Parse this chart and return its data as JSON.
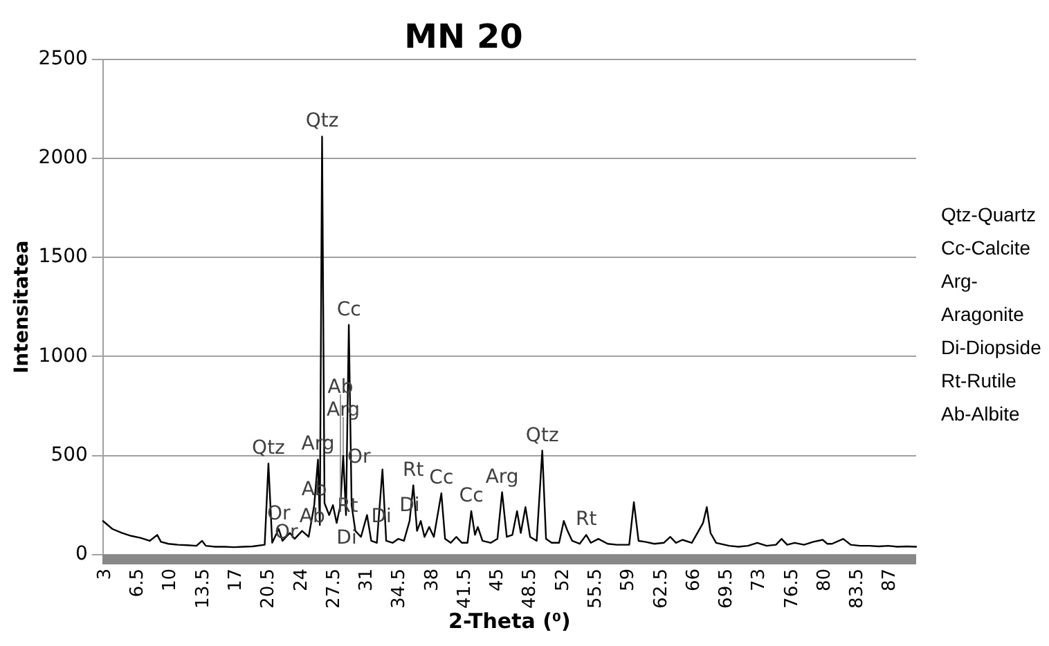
{
  "chart_data": {
    "type": "line",
    "title": "MN 20",
    "xlabel": "2-Theta (⁰)",
    "ylabel": "Intensitatea",
    "x": [
      3,
      3.5,
      4,
      5,
      6,
      7,
      8,
      8.8,
      9.2,
      10,
      11,
      12,
      13,
      13.6,
      14,
      15,
      16,
      17,
      18,
      19,
      20.3,
      20.7,
      21.1,
      21.8,
      22.2,
      23.0,
      23.5,
      24.3,
      25,
      25.6,
      26.0,
      26.2,
      26.44,
      26.7,
      27.2,
      27.6,
      28.0,
      28.4,
      28.7,
      29.0,
      29.3,
      29.6,
      30.0,
      30.6,
      31.25,
      31.7,
      32.3,
      32.9,
      33.3,
      34.0,
      34.6,
      35.2,
      35.8,
      36.2,
      36.6,
      37.0,
      37.4,
      37.9,
      38.4,
      39.2,
      39.6,
      40.2,
      40.8,
      41.4,
      42.0,
      42.4,
      42.8,
      43.1,
      43.6,
      44.5,
      45.2,
      45.7,
      46.2,
      46.8,
      47.3,
      47.7,
      48.2,
      48.7,
      49.4,
      50.0,
      50.4,
      51.0,
      51.8,
      52.3,
      52.7,
      53.2,
      54.0,
      54.7,
      55.2,
      56,
      57,
      58,
      59.3,
      59.8,
      60.3,
      61,
      62,
      63,
      63.7,
      64.3,
      65,
      66,
      67.2,
      67.6,
      68.0,
      68.6,
      70,
      71,
      72,
      73,
      74,
      75,
      75.6,
      76.2,
      77,
      78,
      79,
      80,
      80.5,
      81,
      82.2,
      83,
      84,
      85,
      86,
      87,
      88,
      89,
      90
    ],
    "series": [
      {
        "color": "#000000",
        "values": [
          170,
          150,
          130,
          110,
          95,
          85,
          70,
          100,
          65,
          55,
          50,
          48,
          45,
          70,
          45,
          40,
          40,
          38,
          40,
          42,
          50,
          460,
          60,
          130,
          70,
          110,
          80,
          120,
          90,
          250,
          480,
          150,
          2110,
          260,
          200,
          250,
          160,
          250,
          500,
          200,
          1160,
          250,
          120,
          90,
          200,
          70,
          60,
          430,
          70,
          60,
          80,
          70,
          170,
          350,
          120,
          170,
          90,
          140,
          90,
          310,
          80,
          60,
          90,
          60,
          60,
          220,
          100,
          140,
          70,
          60,
          80,
          315,
          90,
          100,
          220,
          110,
          240,
          90,
          70,
          525,
          80,
          60,
          60,
          170,
          120,
          70,
          55,
          100,
          60,
          80,
          55,
          50,
          50,
          265,
          70,
          65,
          55,
          60,
          90,
          60,
          75,
          60,
          160,
          240,
          110,
          60,
          45,
          40,
          45,
          60,
          45,
          50,
          80,
          50,
          60,
          50,
          65,
          75,
          55,
          55,
          80,
          50,
          45,
          45,
          42,
          45,
          40,
          42,
          40
        ]
      }
    ],
    "xlim": [
      3,
      90
    ],
    "xticks": [
      3,
      6.5,
      10,
      13.5,
      17,
      20.5,
      24,
      27.5,
      31,
      34.5,
      38,
      41.5,
      45,
      48.5,
      52,
      55.5,
      59,
      62.5,
      66,
      69.5,
      73,
      76.5,
      80,
      83.5,
      87
    ],
    "ylim": [
      0,
      2500
    ],
    "yticks": [
      0,
      500,
      1000,
      1500,
      2000,
      2500
    ],
    "grid": "y",
    "annotations": [
      {
        "text": "Qtz",
        "x": 20.7,
        "y": 460
      },
      {
        "text": "Qtz",
        "x": 26.44,
        "y": 2110
      },
      {
        "text": "Cc",
        "x": 29.3,
        "y": 1160
      },
      {
        "text": "Or",
        "x": 21.8,
        "y": 130
      },
      {
        "text": "Ab",
        "x": 25.6,
        "y": 250
      },
      {
        "text": "Or",
        "x": 24.3,
        "y": 120
      },
      {
        "text": "Arg",
        "x": 26.0,
        "y": 480
      },
      {
        "text": "Or",
        "x": 28.7,
        "y": 500
      },
      {
        "text": "Arg",
        "x": 28.7,
        "y": 500
      },
      {
        "text": "Rt",
        "x": 27.6,
        "y": 250
      },
      {
        "text": "Ab",
        "x": 28.4,
        "y": 250
      },
      {
        "text": "Ab",
        "x": 27.2,
        "y": 200
      },
      {
        "text": "Di",
        "x": 31.25,
        "y": 200
      },
      {
        "text": "Di",
        "x": 30.6,
        "y": 90
      },
      {
        "text": "Rt",
        "x": 36.2,
        "y": 350
      },
      {
        "text": "Di",
        "x": 35.8,
        "y": 170
      },
      {
        "text": "Cc",
        "x": 39.2,
        "y": 310
      },
      {
        "text": "Cc",
        "x": 42.4,
        "y": 220
      },
      {
        "text": "Arg",
        "x": 45.7,
        "y": 315
      },
      {
        "text": "Qtz",
        "x": 50.0,
        "y": 525
      },
      {
        "text": "Rt",
        "x": 54.7,
        "y": 100
      },
      "Qtz-Quartz",
      "Cc-Calcite",
      "Arg-",
      "Aragonite",
      "Di-Diopside",
      "Rt-Rutile",
      "Ab-Albite"
    ]
  }
}
